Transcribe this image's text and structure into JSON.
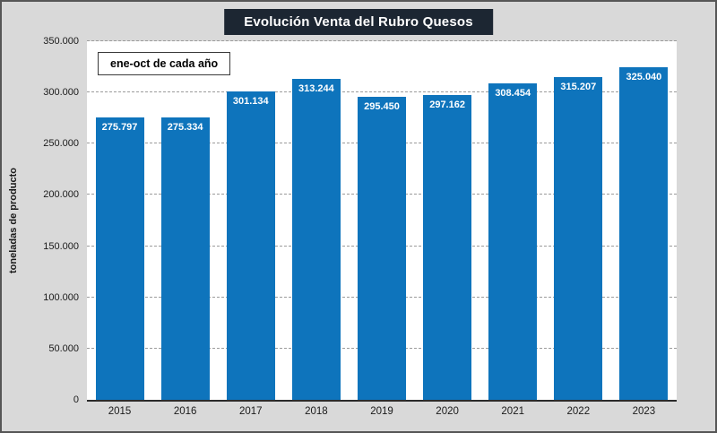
{
  "chart_data": {
    "type": "bar",
    "title": "Evolución Venta del Rubro Quesos",
    "annotation": "ene-oct de cada año",
    "categories": [
      "2015",
      "2016",
      "2017",
      "2018",
      "2019",
      "2020",
      "2021",
      "2022",
      "2023"
    ],
    "values": [
      275797,
      275334,
      301134,
      313244,
      295450,
      297162,
      308454,
      315207,
      325040
    ],
    "value_labels": [
      "275.797",
      "275.334",
      "301.134",
      "313.244",
      "295.450",
      "297.162",
      "308.454",
      "315.207",
      "325.040"
    ],
    "xlabel": "",
    "ylabel": "toneladas de producto",
    "ylim": [
      0,
      350000
    ],
    "y_ticks": [
      "0",
      "50.000",
      "100.000",
      "150.000",
      "200.000",
      "250.000",
      "300.000",
      "350.000"
    ],
    "grid": true,
    "legend": false,
    "colors": {
      "bar": "#0e74bc",
      "title_bg": "#1c2632",
      "background": "#d9d9d9",
      "value_label_text": "#ffffff"
    }
  }
}
